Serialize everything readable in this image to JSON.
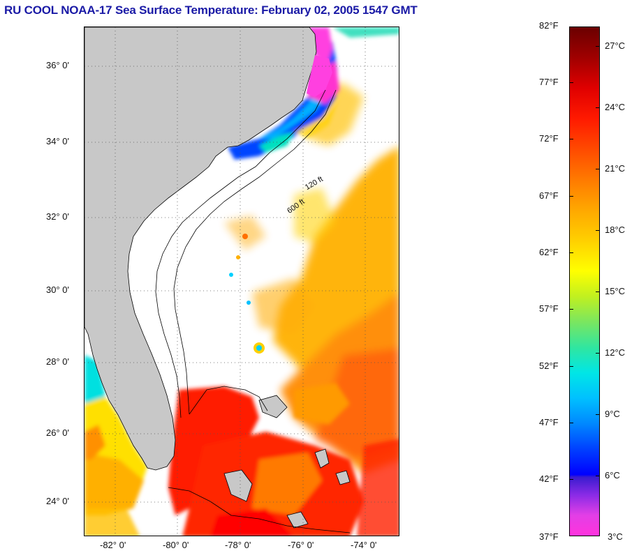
{
  "title": "RU COOL  NOAA-17  Sea Surface Temperature:  February 02, 2005 1547 GMT",
  "map": {
    "lon_range": [
      -83,
      -73
    ],
    "lat_range": [
      23,
      37
    ],
    "latitude_labels": [
      "36° 0'",
      "34° 0'",
      "32° 0'",
      "30° 0'",
      "28° 0'",
      "26° 0'",
      "24° 0'"
    ],
    "longitude_labels": [
      "-82° 0'",
      "-80° 0'",
      "-78° 0'",
      "-76° 0'",
      "-74° 0'"
    ],
    "contour_labels": [
      "120 ft",
      "600 ft"
    ],
    "colors": {
      "land": "#c8c8c8",
      "cloud": "#ffffff",
      "gridline": "#555555"
    }
  },
  "colorbar": {
    "fahrenheit_labels": [
      "82°F",
      "77°F",
      "72°F",
      "67°F",
      "62°F",
      "57°F",
      "52°F",
      "47°F",
      "42°F",
      "37°F"
    ],
    "celsius_labels": [
      "27°C",
      "24°C",
      "21°C",
      "18°C",
      "15°C",
      "12°C",
      "9°C",
      "6°C",
      "3°C"
    ]
  }
}
